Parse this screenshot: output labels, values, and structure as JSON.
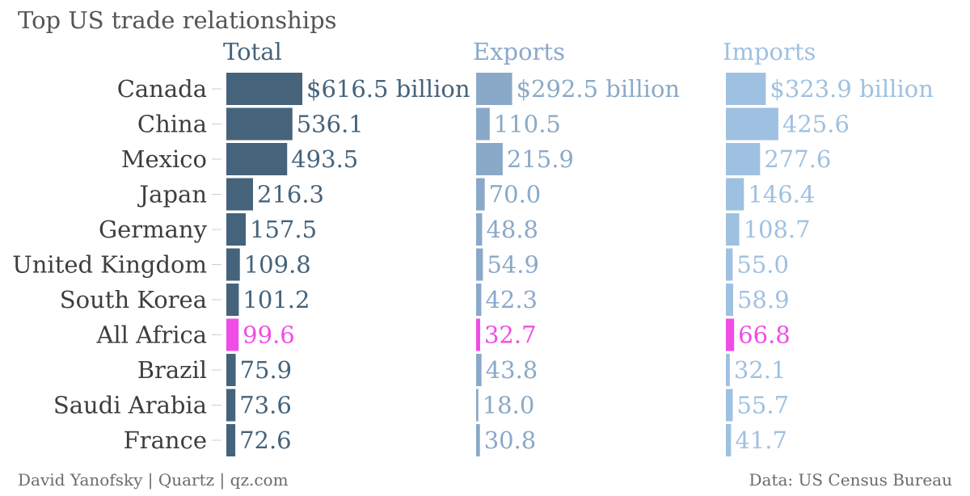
{
  "colors": {
    "total": "#45637b",
    "exports": "#8aa9c8",
    "imports": "#9fc1e1",
    "highlight": "#f04ce6",
    "text": "#3e3e3e",
    "footer": "#6b6b6b"
  },
  "chart_data": {
    "type": "bar",
    "orientation": "horizontal",
    "title": "Top US trade relationships",
    "categories": [
      "Canada",
      "China",
      "Mexico",
      "Japan",
      "Germany",
      "United Kingdom",
      "South Korea",
      "All Africa",
      "Brazil",
      "Saudi Arabia",
      "France"
    ],
    "highlight_category": "All Africa",
    "series": [
      {
        "name": "Total",
        "values": [
          616.5,
          536.1,
          493.5,
          216.3,
          157.5,
          109.8,
          101.2,
          99.6,
          75.9,
          73.6,
          72.6
        ],
        "labels": [
          "$616.5 billion",
          "536.1",
          "493.5",
          "216.3",
          "157.5",
          "109.8",
          "101.2",
          "99.6",
          "75.9",
          "73.6",
          "72.6"
        ]
      },
      {
        "name": "Exports",
        "values": [
          292.5,
          110.5,
          215.9,
          70.0,
          48.8,
          54.9,
          42.3,
          32.7,
          43.8,
          18.0,
          30.8
        ],
        "labels": [
          "$292.5 billion",
          "110.5",
          "215.9",
          "70.0",
          "48.8",
          "54.9",
          "42.3",
          "32.7",
          "43.8",
          "18.0",
          "30.8"
        ]
      },
      {
        "name": "Imports",
        "values": [
          323.9,
          425.6,
          277.6,
          146.4,
          108.7,
          55.0,
          58.9,
          66.8,
          32.1,
          55.7,
          41.7
        ],
        "labels": [
          "$323.9 billion",
          "425.6",
          "277.6",
          "146.4",
          "108.7",
          "55.0",
          "58.9",
          "66.8",
          "32.1",
          "55.7",
          "41.7"
        ]
      }
    ],
    "grid": false,
    "legend": "none"
  },
  "footer": {
    "credit": "David Yanofsky | Quartz | qz.com",
    "source": "Data: US Census Bureau"
  }
}
